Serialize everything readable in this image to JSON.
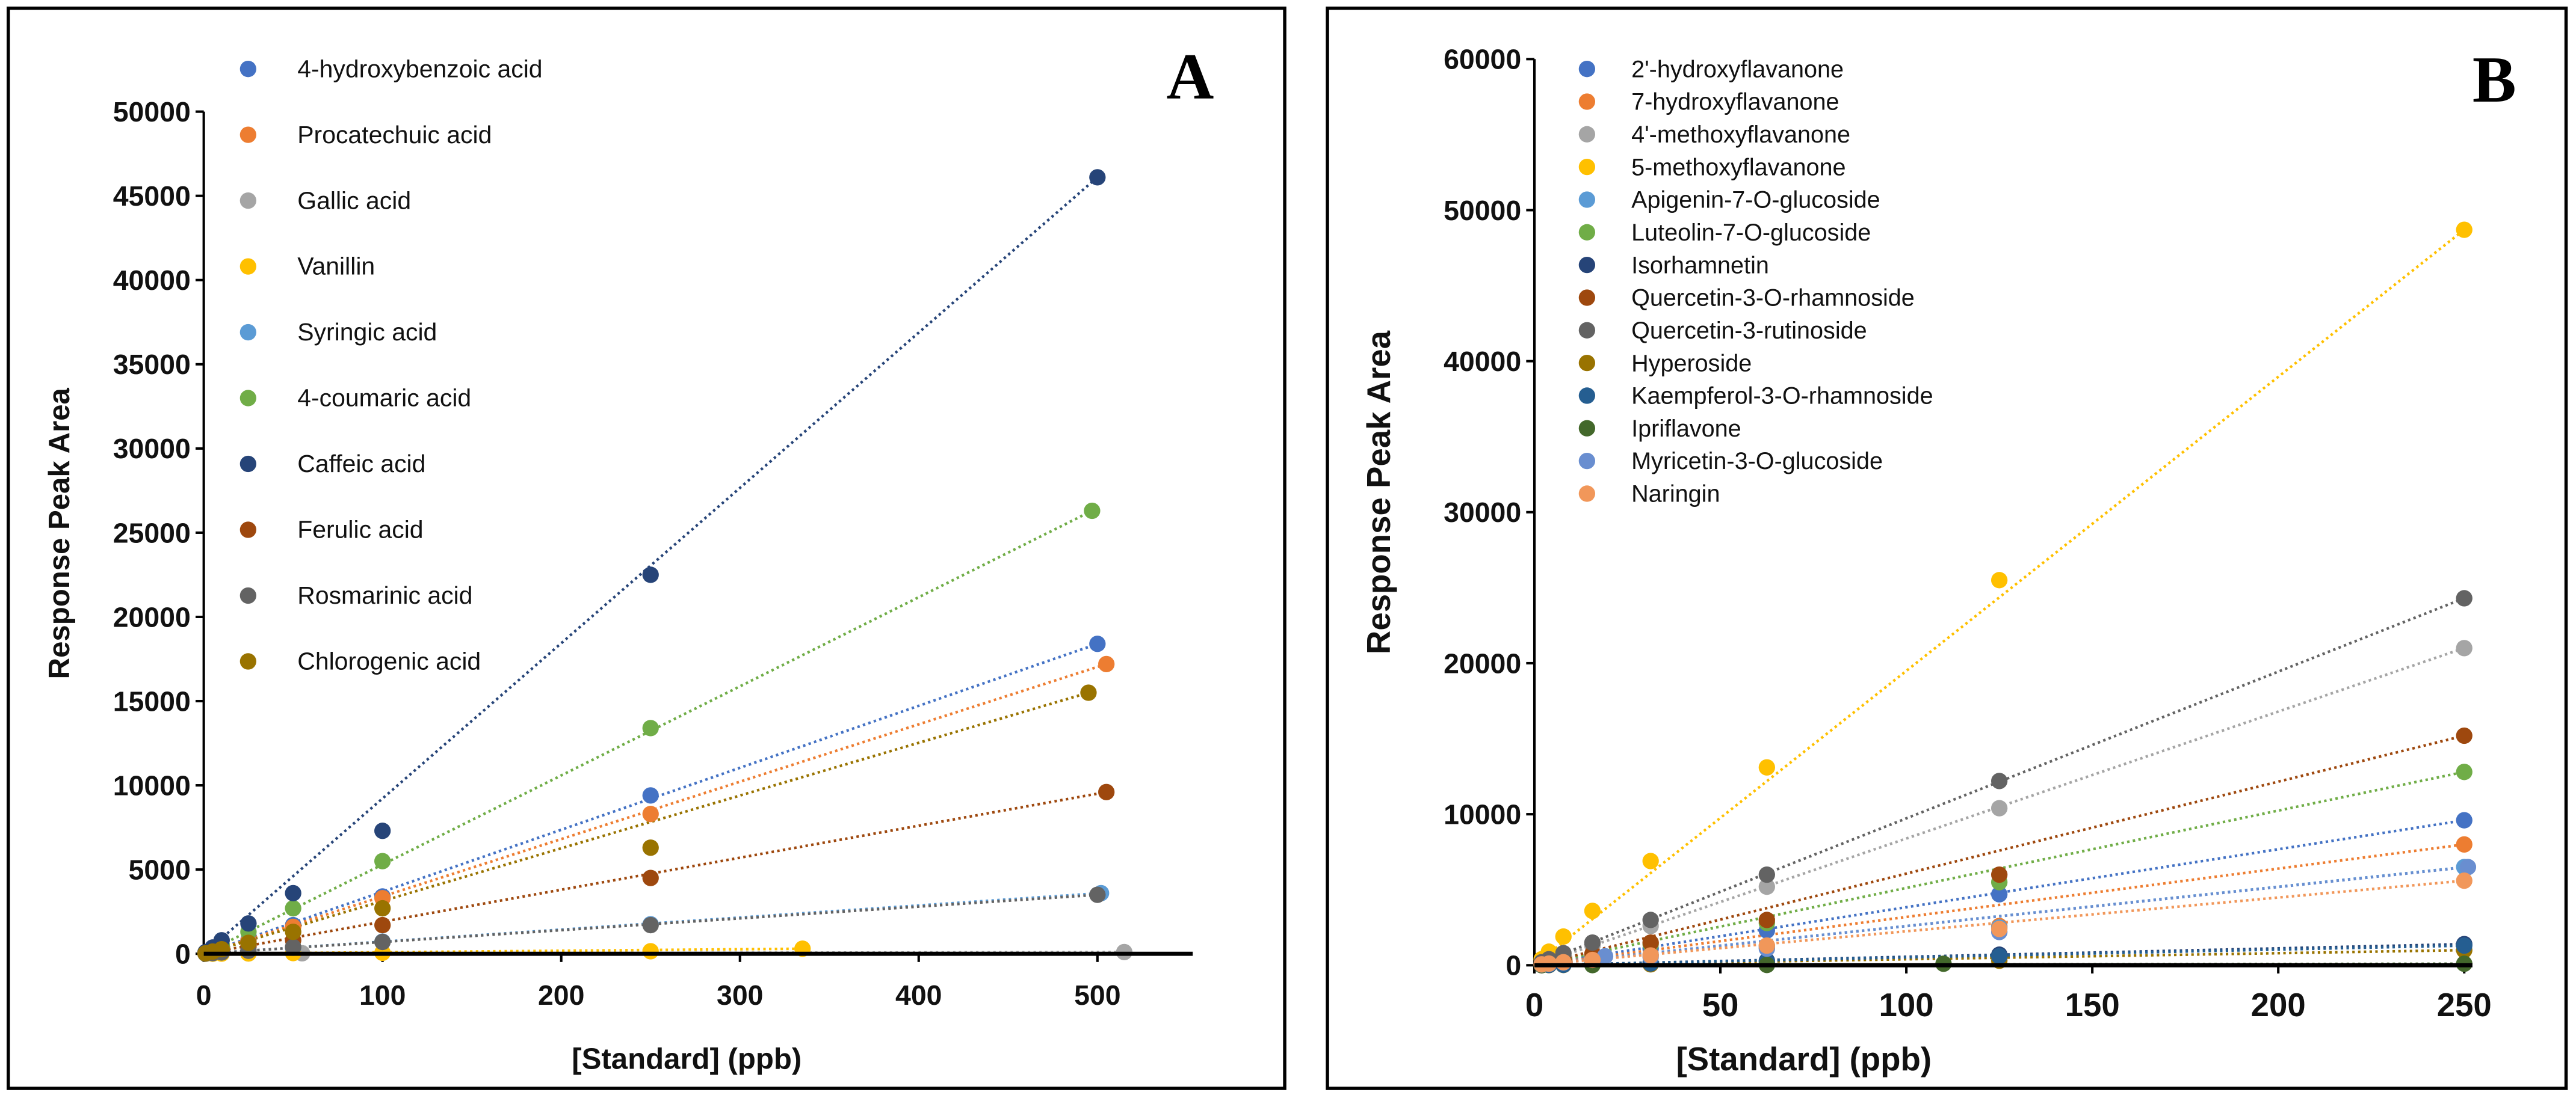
{
  "chart_data": [
    {
      "type": "scatter",
      "panel_label": "A",
      "title": "",
      "xlabel": "[Standard] (ppb)",
      "ylabel": "Response  Peak Area",
      "xlim": [
        0,
        550
      ],
      "ylim": [
        0,
        50000
      ],
      "xticks": [
        0,
        100,
        200,
        300,
        400,
        500
      ],
      "yticks": [
        0,
        5000,
        10000,
        15000,
        20000,
        25000,
        30000,
        35000,
        40000,
        45000,
        50000
      ],
      "grid": false,
      "legend_position": "top-left",
      "trendline": "linear dotted",
      "series": [
        {
          "name": "4-hydroxybenzoic acid",
          "color": "#4472C4",
          "x": [
            1,
            5,
            10,
            25,
            50,
            100,
            250,
            500
          ],
          "y": [
            40,
            180,
            370,
            800,
            1700,
            3400,
            9400,
            18400
          ]
        },
        {
          "name": "Procatechuic acid",
          "color": "#ED7D31",
          "x": [
            1,
            5,
            10,
            25,
            50,
            100,
            250,
            505
          ],
          "y": [
            30,
            160,
            330,
            750,
            1600,
            3300,
            8300,
            17200
          ]
        },
        {
          "name": "Gallic acid",
          "color": "#A5A5A5",
          "x": [
            1,
            5,
            10,
            25,
            55,
            515
          ],
          "y": [
            5,
            10,
            15,
            20,
            30,
            100
          ]
        },
        {
          "name": "Vanillin",
          "color": "#FFC000",
          "x": [
            1,
            5,
            10,
            25,
            50,
            100,
            250,
            335
          ],
          "y": [
            2,
            5,
            10,
            20,
            40,
            60,
            150,
            300
          ]
        },
        {
          "name": "Syringic acid",
          "color": "#5B9BD5",
          "x": [
            1,
            5,
            10,
            25,
            50,
            100,
            250,
            502
          ],
          "y": [
            10,
            40,
            80,
            180,
            360,
            720,
            1750,
            3600
          ]
        },
        {
          "name": "4-coumaric acid",
          "color": "#70AD47",
          "x": [
            1,
            5,
            10,
            25,
            50,
            100,
            250,
            497
          ],
          "y": [
            60,
            270,
            540,
            1300,
            2700,
            5500,
            13400,
            26300
          ]
        },
        {
          "name": "Caffeic acid",
          "color": "#264478",
          "x": [
            1,
            5,
            10,
            25,
            50,
            100,
            250,
            500
          ],
          "y": [
            90,
            370,
            800,
            1800,
            3600,
            7300,
            22500,
            46100
          ]
        },
        {
          "name": "Ferulic acid",
          "color": "#9E480E",
          "x": [
            1,
            5,
            10,
            25,
            50,
            100,
            250,
            505
          ],
          "y": [
            20,
            90,
            190,
            420,
            800,
            1700,
            4500,
            9600
          ]
        },
        {
          "name": "Rosmarinic acid",
          "color": "#636363",
          "x": [
            1,
            5,
            10,
            25,
            50,
            100,
            250,
            500
          ],
          "y": [
            10,
            40,
            80,
            180,
            400,
            700,
            1700,
            3500
          ]
        },
        {
          "name": "Chlorogenic acid",
          "color": "#997300",
          "x": [
            1,
            5,
            10,
            25,
            50,
            100,
            250,
            495
          ],
          "y": [
            30,
            130,
            270,
            650,
            1300,
            2700,
            6300,
            15500
          ]
        }
      ]
    },
    {
      "type": "scatter",
      "panel_label": "B",
      "title": "",
      "xlabel": "[Standard] (ppb)",
      "ylabel": "Response  Peak Area",
      "xlim": [
        0,
        255
      ],
      "ylim": [
        0,
        60000
      ],
      "xticks": [
        0,
        50,
        100,
        150,
        200,
        250
      ],
      "yticks": [
        0,
        10000,
        20000,
        30000,
        40000,
        50000,
        60000
      ],
      "grid": false,
      "legend_position": "top-left",
      "trendline": "linear dotted",
      "series": [
        {
          "name": "2'-hydroxyflavanone",
          "color": "#4472C4",
          "x": [
            1.95,
            3.9,
            7.8,
            15.6,
            31.25,
            62.5,
            125,
            250
          ],
          "y": [
            80,
            150,
            300,
            600,
            1100,
            2300,
            4700,
            9600
          ]
        },
        {
          "name": "7-hydroxyflavanone",
          "color": "#ED7D31",
          "x": [
            1.95,
            3.9,
            7.8,
            15.6,
            31.25,
            62.5,
            125,
            250
          ],
          "y": [
            60,
            110,
            200,
            350,
            700,
            1300,
            2600,
            8000
          ]
        },
        {
          "name": "4'-methoxyflavanone",
          "color": "#A5A5A5",
          "x": [
            1.95,
            3.9,
            7.8,
            15.6,
            31.25,
            62.5,
            125,
            250
          ],
          "y": [
            150,
            320,
            650,
            1300,
            2600,
            5200,
            10400,
            21000
          ]
        },
        {
          "name": "5-methoxyflavanone",
          "color": "#FFC000",
          "x": [
            1.95,
            3.9,
            7.8,
            15.6,
            31.25,
            62.5,
            125,
            250
          ],
          "y": [
            400,
            900,
            1900,
            3600,
            6900,
            13100,
            25500,
            48700
          ]
        },
        {
          "name": "Apigenin-7-O-glucoside",
          "color": "#5B9BD5",
          "x": [
            1.95,
            3.9,
            7.8,
            15.6,
            31.25,
            62.5,
            125,
            250
          ],
          "y": [
            50,
            100,
            200,
            350,
            650,
            1200,
            2500,
            6500
          ]
        },
        {
          "name": "Luteolin-7-O-glucoside",
          "color": "#70AD47",
          "x": [
            1.95,
            3.9,
            7.8,
            15.6,
            31.25,
            62.5,
            125,
            250
          ],
          "y": [
            100,
            200,
            380,
            700,
            1400,
            2800,
            5500,
            12800
          ]
        },
        {
          "name": "Isorhamnetin",
          "color": "#264478",
          "x": [
            1.95,
            3.9,
            7.8,
            15.6,
            31.25,
            62.5,
            125,
            250
          ],
          "y": [
            10,
            20,
            40,
            80,
            150,
            300,
            700,
            1400
          ]
        },
        {
          "name": "Quercetin-3-O-rhamnoside",
          "color": "#9E480E",
          "x": [
            1.95,
            3.9,
            7.8,
            15.6,
            31.25,
            62.5,
            125,
            250
          ],
          "y": [
            100,
            200,
            380,
            750,
            1500,
            3000,
            6000,
            15200
          ]
        },
        {
          "name": "Quercetin-3-rutinoside",
          "color": "#636363",
          "x": [
            1.95,
            3.9,
            7.8,
            15.6,
            31.25,
            62.5,
            125,
            250
          ],
          "y": [
            200,
            400,
            800,
            1500,
            3000,
            6000,
            12200,
            24300
          ]
        },
        {
          "name": "Hyperoside",
          "color": "#997300",
          "x": [
            1.95,
            3.9,
            7.8,
            15.6,
            31.25,
            62.5,
            125,
            250
          ],
          "y": [
            5,
            10,
            20,
            40,
            60,
            100,
            300,
            1000
          ]
        },
        {
          "name": "Kaempferol-3-O-rhamnoside",
          "color": "#255E91",
          "x": [
            1.95,
            3.9,
            7.8,
            15.6,
            31.25,
            62.5,
            125,
            250
          ],
          "y": [
            10,
            20,
            30,
            60,
            120,
            250,
            600,
            1300
          ]
        },
        {
          "name": "Ipriflavone",
          "color": "#43682B",
          "x": [
            1.95,
            15.6,
            62.5,
            110,
            250
          ],
          "y": [
            5,
            10,
            20,
            100,
            100
          ]
        },
        {
          "name": "Myricetin-3-O-glucoside",
          "color": "#698ED0",
          "x": [
            1.95,
            3.9,
            7.8,
            19,
            31.25,
            62.5,
            125,
            251
          ],
          "y": [
            50,
            90,
            180,
            600,
            550,
            1100,
            2200,
            6500
          ]
        },
        {
          "name": "Naringin",
          "color": "#F1975A",
          "x": [
            1.95,
            3.9,
            7.8,
            15.6,
            31.25,
            62.5,
            125,
            250
          ],
          "y": [
            60,
            110,
            200,
            350,
            650,
            1300,
            2400,
            5600
          ]
        }
      ]
    }
  ]
}
